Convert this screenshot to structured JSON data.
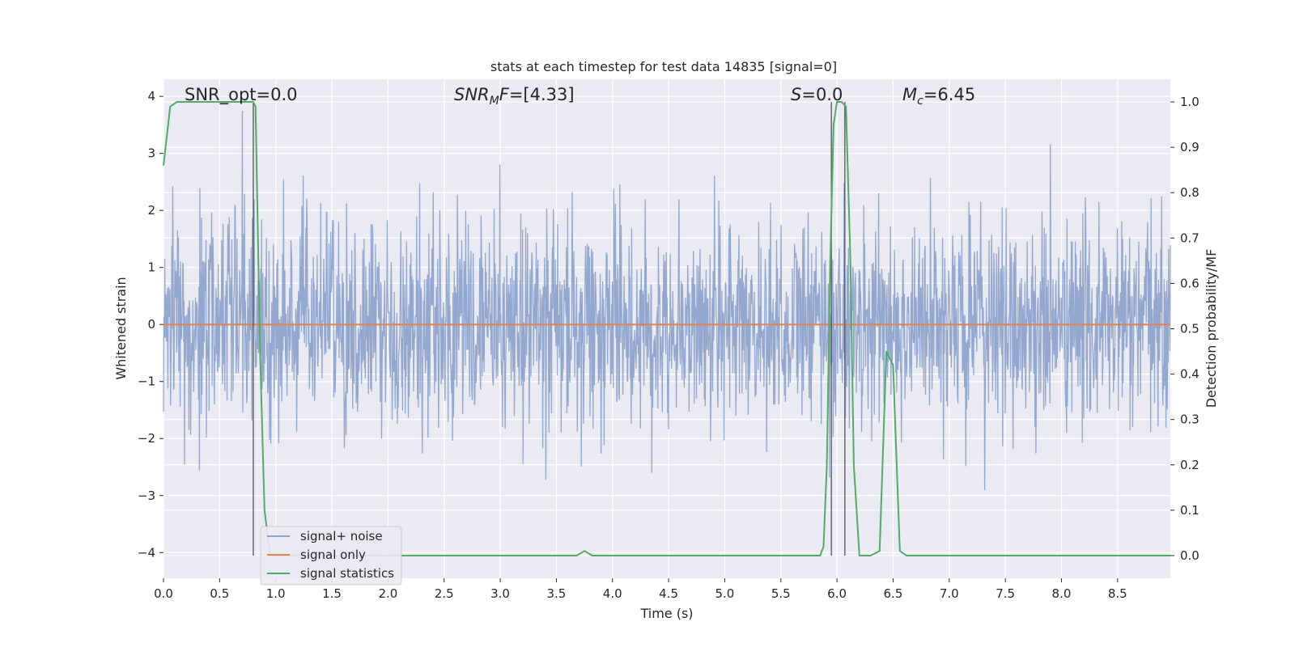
{
  "chart_data": {
    "type": "line",
    "title": "stats at each timestep for test data 14835 [signal=0]",
    "xlabel": "Time (s)",
    "ylabel_left": "Whitened strain",
    "ylabel_right": "Detection probability/MF",
    "xlim": [
      0.0,
      8.97
    ],
    "ylim_left": [
      -4.45,
      4.3
    ],
    "ylim_right": [
      -0.05,
      1.05
    ],
    "grid": true,
    "legend_placement": "lower-left",
    "x_ticks": [
      "0.0",
      "0.5",
      "1.0",
      "1.5",
      "2.0",
      "2.5",
      "3.0",
      "3.5",
      "4.0",
      "4.5",
      "5.0",
      "5.5",
      "6.0",
      "6.5",
      "7.0",
      "7.5",
      "8.0",
      "8.5"
    ],
    "y_left_ticks": [
      "4",
      "3",
      "2",
      "1",
      "0",
      "−1",
      "−2",
      "−3",
      "−4"
    ],
    "y_right_ticks": [
      "1.0",
      "0.9",
      "0.8",
      "0.7",
      "0.6",
      "0.5",
      "0.4",
      "0.3",
      "0.2",
      "0.1",
      "0.0"
    ],
    "annotations": [
      {
        "id": "snr-opt",
        "prefix": "SNR_opt=",
        "value": "0.0"
      },
      {
        "id": "snr-mf",
        "prefix_italic": "SNR",
        "sub": "M",
        "suffix_italic": "F",
        "value": "=[4.33]"
      },
      {
        "id": "s-stat",
        "prefix_italic": "S",
        "value": "=0.0"
      },
      {
        "id": "mc",
        "prefix_italic": "M",
        "sub": "c",
        "value": "=6.45"
      }
    ],
    "colors": {
      "noise": "#8fa4cc",
      "signal_only": "#dd8452",
      "statistics": "#55a868",
      "vlines": "#555555",
      "background": "#eaeaf2",
      "grid": "#ffffff"
    },
    "series": [
      {
        "name": "signal+ noise",
        "axis": "left",
        "amplitude_sigma": 0.9,
        "n_samples": 2300,
        "x_range": [
          0.0,
          8.97
        ]
      },
      {
        "name": "signal only",
        "axis": "left",
        "x": [
          0.0,
          8.97
        ],
        "y": [
          0.0,
          0.0
        ]
      },
      {
        "name": "signal statistics",
        "axis": "right",
        "x": [
          0.0,
          0.06,
          0.12,
          0.5,
          0.8,
          0.82,
          0.86,
          0.9,
          0.95,
          1.0,
          3.6,
          3.68,
          3.75,
          3.82,
          3.9,
          5.85,
          5.88,
          5.91,
          5.94,
          5.97,
          6.0,
          6.04,
          6.08,
          6.12,
          6.15,
          6.2,
          6.3,
          6.38,
          6.44,
          6.5,
          6.56,
          6.62,
          8.97
        ],
        "y": [
          0.86,
          0.99,
          1.0,
          1.0,
          1.0,
          0.99,
          0.45,
          0.1,
          0.0,
          0.0,
          0.0,
          0.0,
          0.01,
          0.0,
          0.0,
          0.0,
          0.02,
          0.2,
          0.65,
          0.95,
          1.0,
          1.0,
          0.99,
          0.65,
          0.2,
          0.0,
          0.0,
          0.01,
          0.45,
          0.42,
          0.01,
          0.0,
          0.0
        ]
      }
    ],
    "vertical_lines_x": [
      0.8,
      5.95,
      6.07
    ]
  }
}
